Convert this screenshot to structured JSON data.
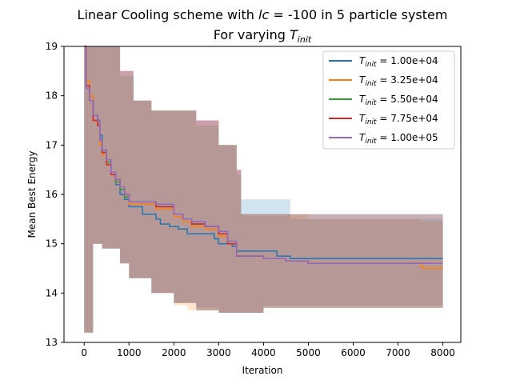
{
  "chart_data": {
    "type": "line",
    "title_line1": "Linear Cooling scheme with lc = -100 in 5 particle system",
    "title_line1_parts": {
      "pre": "Linear Cooling scheme with ",
      "ital": "lc",
      "post": " = -100 in 5 particle system"
    },
    "title_line2_parts": {
      "pre": "For varying ",
      "ital": "T",
      "sub": "init"
    },
    "xlabel": "Iteration",
    "ylabel": "Mean Best Energy",
    "xlim": [
      -450,
      8400
    ],
    "ylim": [
      13,
      19
    ],
    "xticks": [
      0,
      1000,
      2000,
      3000,
      4000,
      5000,
      6000,
      7000,
      8000
    ],
    "yticks": [
      13,
      14,
      15,
      16,
      17,
      18,
      19
    ],
    "legend_position": "top-right",
    "series": [
      {
        "name": "= 1.00e+04",
        "legend_sym": "T",
        "legend_sub": "init",
        "color": "#1f77b4",
        "points": [
          [
            0,
            19.5
          ],
          [
            40,
            18.2
          ],
          [
            120,
            18.0
          ],
          [
            200,
            17.6
          ],
          [
            300,
            17.5
          ],
          [
            350,
            17.2
          ],
          [
            400,
            16.9
          ],
          [
            500,
            16.7
          ],
          [
            600,
            16.4
          ],
          [
            700,
            16.2
          ],
          [
            800,
            16.0
          ],
          [
            900,
            15.9
          ],
          [
            1000,
            15.75
          ],
          [
            1300,
            15.6
          ],
          [
            1600,
            15.5
          ],
          [
            1700,
            15.4
          ],
          [
            1900,
            15.35
          ],
          [
            2100,
            15.3
          ],
          [
            2300,
            15.2
          ],
          [
            2900,
            15.1
          ],
          [
            3000,
            15.0
          ],
          [
            3300,
            14.95
          ],
          [
            3400,
            14.85
          ],
          [
            4300,
            14.75
          ],
          [
            4600,
            14.7
          ],
          [
            8000,
            14.7
          ]
        ],
        "band_upper": [
          [
            0,
            19.5
          ],
          [
            200,
            19.4
          ],
          [
            500,
            19.0
          ],
          [
            800,
            18.5
          ],
          [
            1100,
            17.9
          ],
          [
            1500,
            17.7
          ],
          [
            2000,
            17.7
          ],
          [
            2500,
            17.5
          ],
          [
            3000,
            17.0
          ],
          [
            3400,
            16.5
          ],
          [
            3500,
            15.9
          ],
          [
            4500,
            15.9
          ],
          [
            4600,
            15.5
          ],
          [
            8000,
            15.4
          ]
        ],
        "band_lower": [
          [
            0,
            13.2
          ],
          [
            200,
            15.0
          ],
          [
            400,
            14.9
          ],
          [
            800,
            14.6
          ],
          [
            1000,
            14.3
          ],
          [
            1500,
            14.0
          ],
          [
            2000,
            13.8
          ],
          [
            2500,
            13.7
          ],
          [
            3000,
            13.6
          ],
          [
            4000,
            13.75
          ],
          [
            8000,
            13.7
          ]
        ]
      },
      {
        "name": "= 3.25e+04",
        "legend_sym": "T",
        "legend_sub": "init",
        "color": "#ff7f0e",
        "points": [
          [
            0,
            19.5
          ],
          [
            40,
            18.3
          ],
          [
            120,
            18.0
          ],
          [
            200,
            17.5
          ],
          [
            300,
            17.4
          ],
          [
            350,
            17.0
          ],
          [
            400,
            16.8
          ],
          [
            500,
            16.6
          ],
          [
            600,
            16.4
          ],
          [
            700,
            16.25
          ],
          [
            800,
            16.1
          ],
          [
            900,
            15.95
          ],
          [
            1000,
            15.8
          ],
          [
            1600,
            15.7
          ],
          [
            2000,
            15.55
          ],
          [
            2200,
            15.45
          ],
          [
            2400,
            15.35
          ],
          [
            2700,
            15.3
          ],
          [
            3000,
            15.15
          ],
          [
            3200,
            15.05
          ],
          [
            3400,
            14.75
          ],
          [
            4000,
            14.7
          ],
          [
            4500,
            14.65
          ],
          [
            5000,
            14.6
          ],
          [
            7500,
            14.55
          ],
          [
            7550,
            14.5
          ],
          [
            8000,
            14.5
          ]
        ],
        "band_upper": [
          [
            0,
            19.5
          ],
          [
            200,
            19.4
          ],
          [
            500,
            19.0
          ],
          [
            800,
            18.5
          ],
          [
            1100,
            17.9
          ],
          [
            1500,
            17.7
          ],
          [
            2000,
            17.7
          ],
          [
            2500,
            17.5
          ],
          [
            3000,
            17.0
          ],
          [
            3400,
            16.5
          ],
          [
            3500,
            15.6
          ],
          [
            4500,
            15.6
          ],
          [
            5000,
            15.5
          ],
          [
            7500,
            15.45
          ],
          [
            8000,
            15.4
          ]
        ],
        "band_lower": [
          [
            0,
            13.2
          ],
          [
            200,
            15.0
          ],
          [
            400,
            14.9
          ],
          [
            800,
            14.6
          ],
          [
            1000,
            14.3
          ],
          [
            1500,
            14.0
          ],
          [
            2000,
            13.75
          ],
          [
            2300,
            13.65
          ],
          [
            3000,
            13.6
          ],
          [
            4000,
            13.7
          ],
          [
            8000,
            13.6
          ]
        ]
      },
      {
        "name": "= 5.50e+04",
        "legend_sym": "T",
        "legend_sub": "init",
        "color": "#2ca02c",
        "points": [
          [
            0,
            19.5
          ],
          [
            40,
            18.2
          ],
          [
            120,
            17.9
          ],
          [
            200,
            17.6
          ],
          [
            300,
            17.4
          ],
          [
            350,
            17.1
          ],
          [
            400,
            16.85
          ],
          [
            500,
            16.65
          ],
          [
            600,
            16.4
          ],
          [
            700,
            16.25
          ],
          [
            800,
            16.1
          ],
          [
            900,
            15.95
          ],
          [
            1000,
            15.85
          ],
          [
            1600,
            15.75
          ],
          [
            2000,
            15.6
          ],
          [
            2200,
            15.5
          ],
          [
            2400,
            15.4
          ],
          [
            2700,
            15.35
          ],
          [
            3000,
            15.2
          ],
          [
            3200,
            15.0
          ],
          [
            3400,
            14.75
          ],
          [
            4000,
            14.7
          ],
          [
            4500,
            14.65
          ],
          [
            5000,
            14.6
          ],
          [
            8000,
            14.6
          ]
        ],
        "band_upper": [
          [
            0,
            19.5
          ],
          [
            200,
            19.4
          ],
          [
            500,
            19.0
          ],
          [
            800,
            18.4
          ],
          [
            1100,
            17.9
          ],
          [
            1500,
            17.7
          ],
          [
            2000,
            17.7
          ],
          [
            2500,
            17.4
          ],
          [
            3000,
            17.0
          ],
          [
            3400,
            16.4
          ],
          [
            3500,
            15.6
          ],
          [
            8000,
            15.5
          ]
        ],
        "band_lower": [
          [
            0,
            13.2
          ],
          [
            200,
            15.0
          ],
          [
            400,
            14.9
          ],
          [
            800,
            14.6
          ],
          [
            1000,
            14.3
          ],
          [
            1500,
            14.0
          ],
          [
            2000,
            13.8
          ],
          [
            2500,
            13.65
          ],
          [
            3000,
            13.6
          ],
          [
            4000,
            13.7
          ],
          [
            8000,
            13.7
          ]
        ]
      },
      {
        "name": "= 7.75e+04",
        "legend_sym": "T",
        "legend_sub": "init",
        "color": "#d62728",
        "points": [
          [
            0,
            19.5
          ],
          [
            40,
            18.2
          ],
          [
            120,
            17.9
          ],
          [
            200,
            17.5
          ],
          [
            300,
            17.4
          ],
          [
            350,
            17.1
          ],
          [
            400,
            16.85
          ],
          [
            500,
            16.6
          ],
          [
            600,
            16.4
          ],
          [
            700,
            16.3
          ],
          [
            800,
            16.15
          ],
          [
            900,
            16.0
          ],
          [
            1000,
            15.85
          ],
          [
            1600,
            15.75
          ],
          [
            2000,
            15.6
          ],
          [
            2200,
            15.5
          ],
          [
            2400,
            15.4
          ],
          [
            2700,
            15.35
          ],
          [
            3000,
            15.2
          ],
          [
            3200,
            15.0
          ],
          [
            3400,
            14.75
          ],
          [
            4000,
            14.7
          ],
          [
            4500,
            14.65
          ],
          [
            5000,
            14.6
          ],
          [
            8000,
            14.6
          ]
        ],
        "band_upper": [
          [
            0,
            19.5
          ],
          [
            200,
            19.4
          ],
          [
            500,
            19.0
          ],
          [
            800,
            18.5
          ],
          [
            1100,
            17.9
          ],
          [
            1500,
            17.7
          ],
          [
            2000,
            17.7
          ],
          [
            2500,
            17.5
          ],
          [
            3000,
            17.0
          ],
          [
            3400,
            16.5
          ],
          [
            3500,
            15.6
          ],
          [
            8000,
            15.5
          ]
        ],
        "band_lower": [
          [
            0,
            13.2
          ],
          [
            200,
            15.0
          ],
          [
            400,
            14.9
          ],
          [
            800,
            14.6
          ],
          [
            1000,
            14.3
          ],
          [
            1500,
            14.0
          ],
          [
            2000,
            13.8
          ],
          [
            2500,
            13.65
          ],
          [
            3000,
            13.6
          ],
          [
            4000,
            13.7
          ],
          [
            8000,
            13.7
          ]
        ]
      },
      {
        "name": "= 1.00e+05",
        "legend_sym": "T",
        "legend_sub": "init",
        "color": "#9467bd",
        "points": [
          [
            0,
            19.5
          ],
          [
            40,
            18.15
          ],
          [
            120,
            17.9
          ],
          [
            200,
            17.6
          ],
          [
            300,
            17.5
          ],
          [
            350,
            17.1
          ],
          [
            400,
            16.9
          ],
          [
            500,
            16.7
          ],
          [
            600,
            16.45
          ],
          [
            700,
            16.3
          ],
          [
            800,
            16.15
          ],
          [
            900,
            16.0
          ],
          [
            1000,
            15.85
          ],
          [
            1600,
            15.8
          ],
          [
            2000,
            15.6
          ],
          [
            2200,
            15.5
          ],
          [
            2400,
            15.45
          ],
          [
            2700,
            15.35
          ],
          [
            3000,
            15.25
          ],
          [
            3200,
            15.05
          ],
          [
            3400,
            14.75
          ],
          [
            4000,
            14.7
          ],
          [
            4500,
            14.65
          ],
          [
            5000,
            14.6
          ],
          [
            8000,
            14.6
          ]
        ],
        "band_upper": [
          [
            0,
            19.5
          ],
          [
            200,
            19.4
          ],
          [
            500,
            19.0
          ],
          [
            800,
            18.5
          ],
          [
            1100,
            17.9
          ],
          [
            1500,
            17.7
          ],
          [
            2000,
            17.7
          ],
          [
            2500,
            17.5
          ],
          [
            3000,
            17.0
          ],
          [
            3400,
            16.5
          ],
          [
            3500,
            15.6
          ],
          [
            8000,
            15.5
          ]
        ],
        "band_lower": [
          [
            0,
            13.2
          ],
          [
            200,
            15.0
          ],
          [
            400,
            14.9
          ],
          [
            800,
            14.6
          ],
          [
            1000,
            14.3
          ],
          [
            1500,
            14.0
          ],
          [
            2000,
            13.8
          ],
          [
            2500,
            13.65
          ],
          [
            3000,
            13.6
          ],
          [
            4000,
            13.7
          ],
          [
            8000,
            13.7
          ]
        ]
      }
    ]
  }
}
